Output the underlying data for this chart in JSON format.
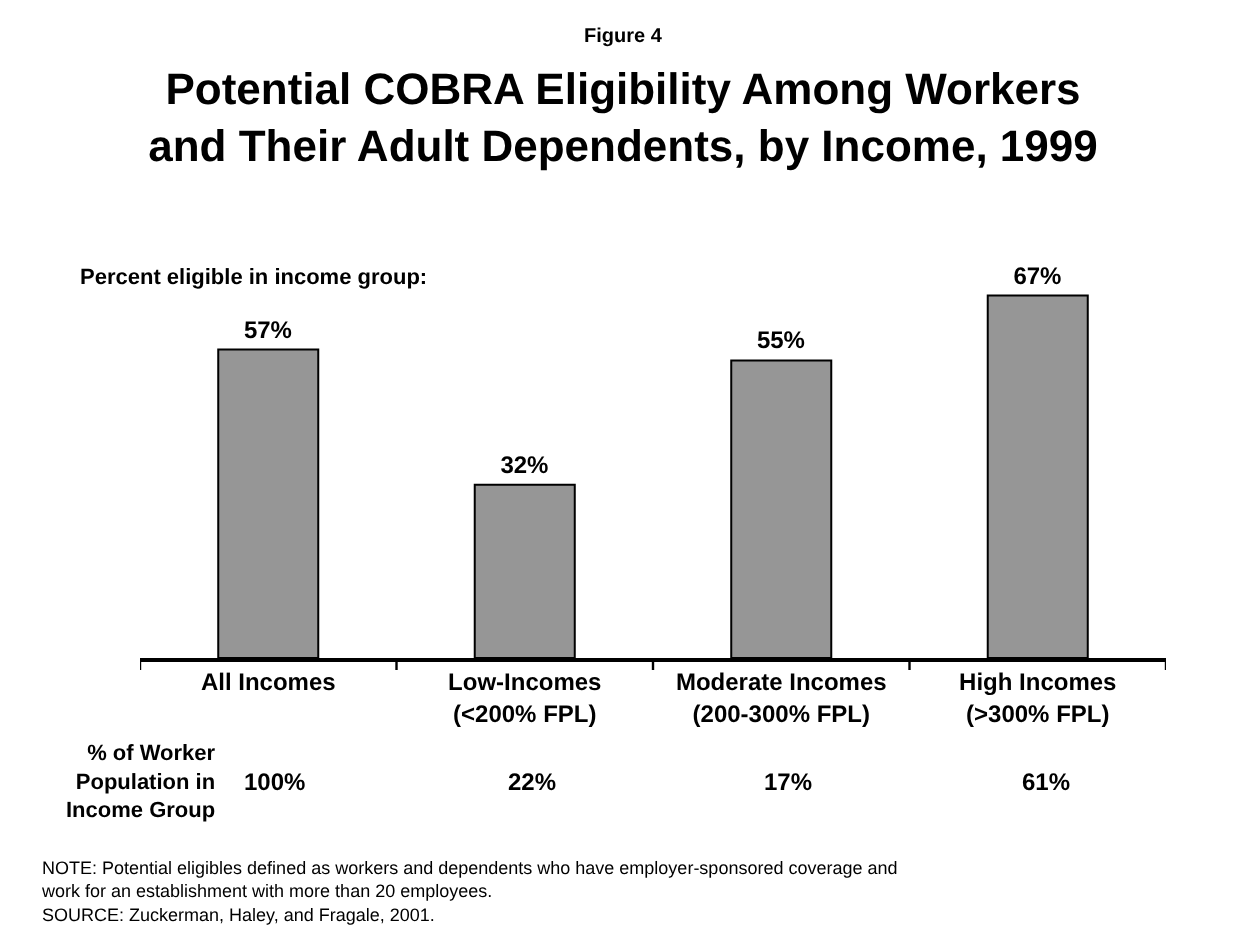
{
  "chart_data": {
    "type": "bar",
    "title": "Potential COBRA Eligibility Among Workers\nand Their Adult Dependents, by Income, 1999",
    "categories": [
      "All Incomes",
      "Low-Incomes\n(<200% FPL)",
      "Moderate Incomes\n(200-300% FPL)",
      "High Incomes\n(>300% FPL)"
    ],
    "values": [
      57,
      32,
      55,
      67
    ],
    "color": "#969696",
    "value_labels": [
      "57%",
      "32%",
      "55%",
      "67%"
    ],
    "annotations": [
      "Figure 4",
      "Percent eligible in income group:",
      "% of Worker\nPopulation in\nIncome Group",
      "100%",
      "22%",
      "17%",
      "61%",
      "NOTE: Potential eligibles defined as workers and dependents who have employer-sponsored coverage and\nwork for an establishment with more than 20 employees.\nSOURCE: Zuckerman, Haley, and Fragale, 2001."
    ],
    "legend": false
  }
}
